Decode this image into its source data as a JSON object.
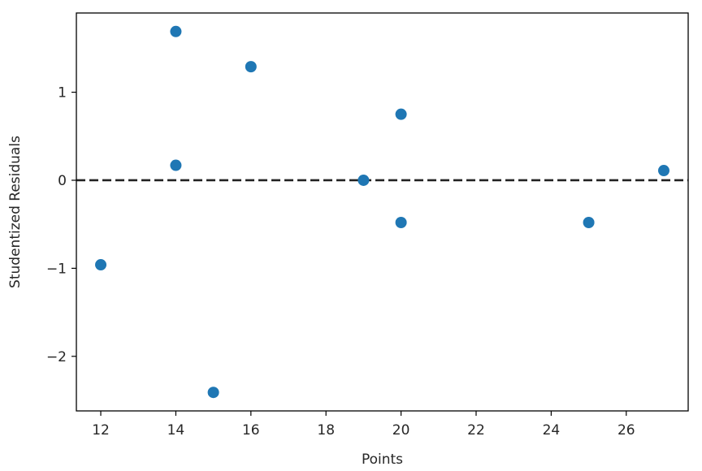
{
  "chart_data": {
    "type": "scatter",
    "title": "",
    "xlabel": "Points",
    "ylabel": "Studentized Residuals",
    "xlim": [
      11.35,
      27.65
    ],
    "ylim": [
      -2.62,
      1.9
    ],
    "x_ticks": [
      12,
      14,
      16,
      18,
      20,
      22,
      24,
      26
    ],
    "y_ticks": [
      -2,
      -1,
      0,
      1
    ],
    "y_tick_labels": [
      "−2",
      "−1",
      "0",
      "1"
    ],
    "grid": false,
    "reference_line": {
      "y": 0,
      "style": "dashed",
      "color": "#000000"
    },
    "marker_color": "#1f77b4",
    "points": [
      {
        "x": 12,
        "y": -0.96
      },
      {
        "x": 14,
        "y": 1.69
      },
      {
        "x": 14,
        "y": 0.17
      },
      {
        "x": 15,
        "y": -2.41
      },
      {
        "x": 16,
        "y": 1.29
      },
      {
        "x": 19,
        "y": 0.0
      },
      {
        "x": 20,
        "y": 0.75
      },
      {
        "x": 20,
        "y": -0.48
      },
      {
        "x": 25,
        "y": -0.48
      },
      {
        "x": 27,
        "y": 0.11
      }
    ]
  }
}
